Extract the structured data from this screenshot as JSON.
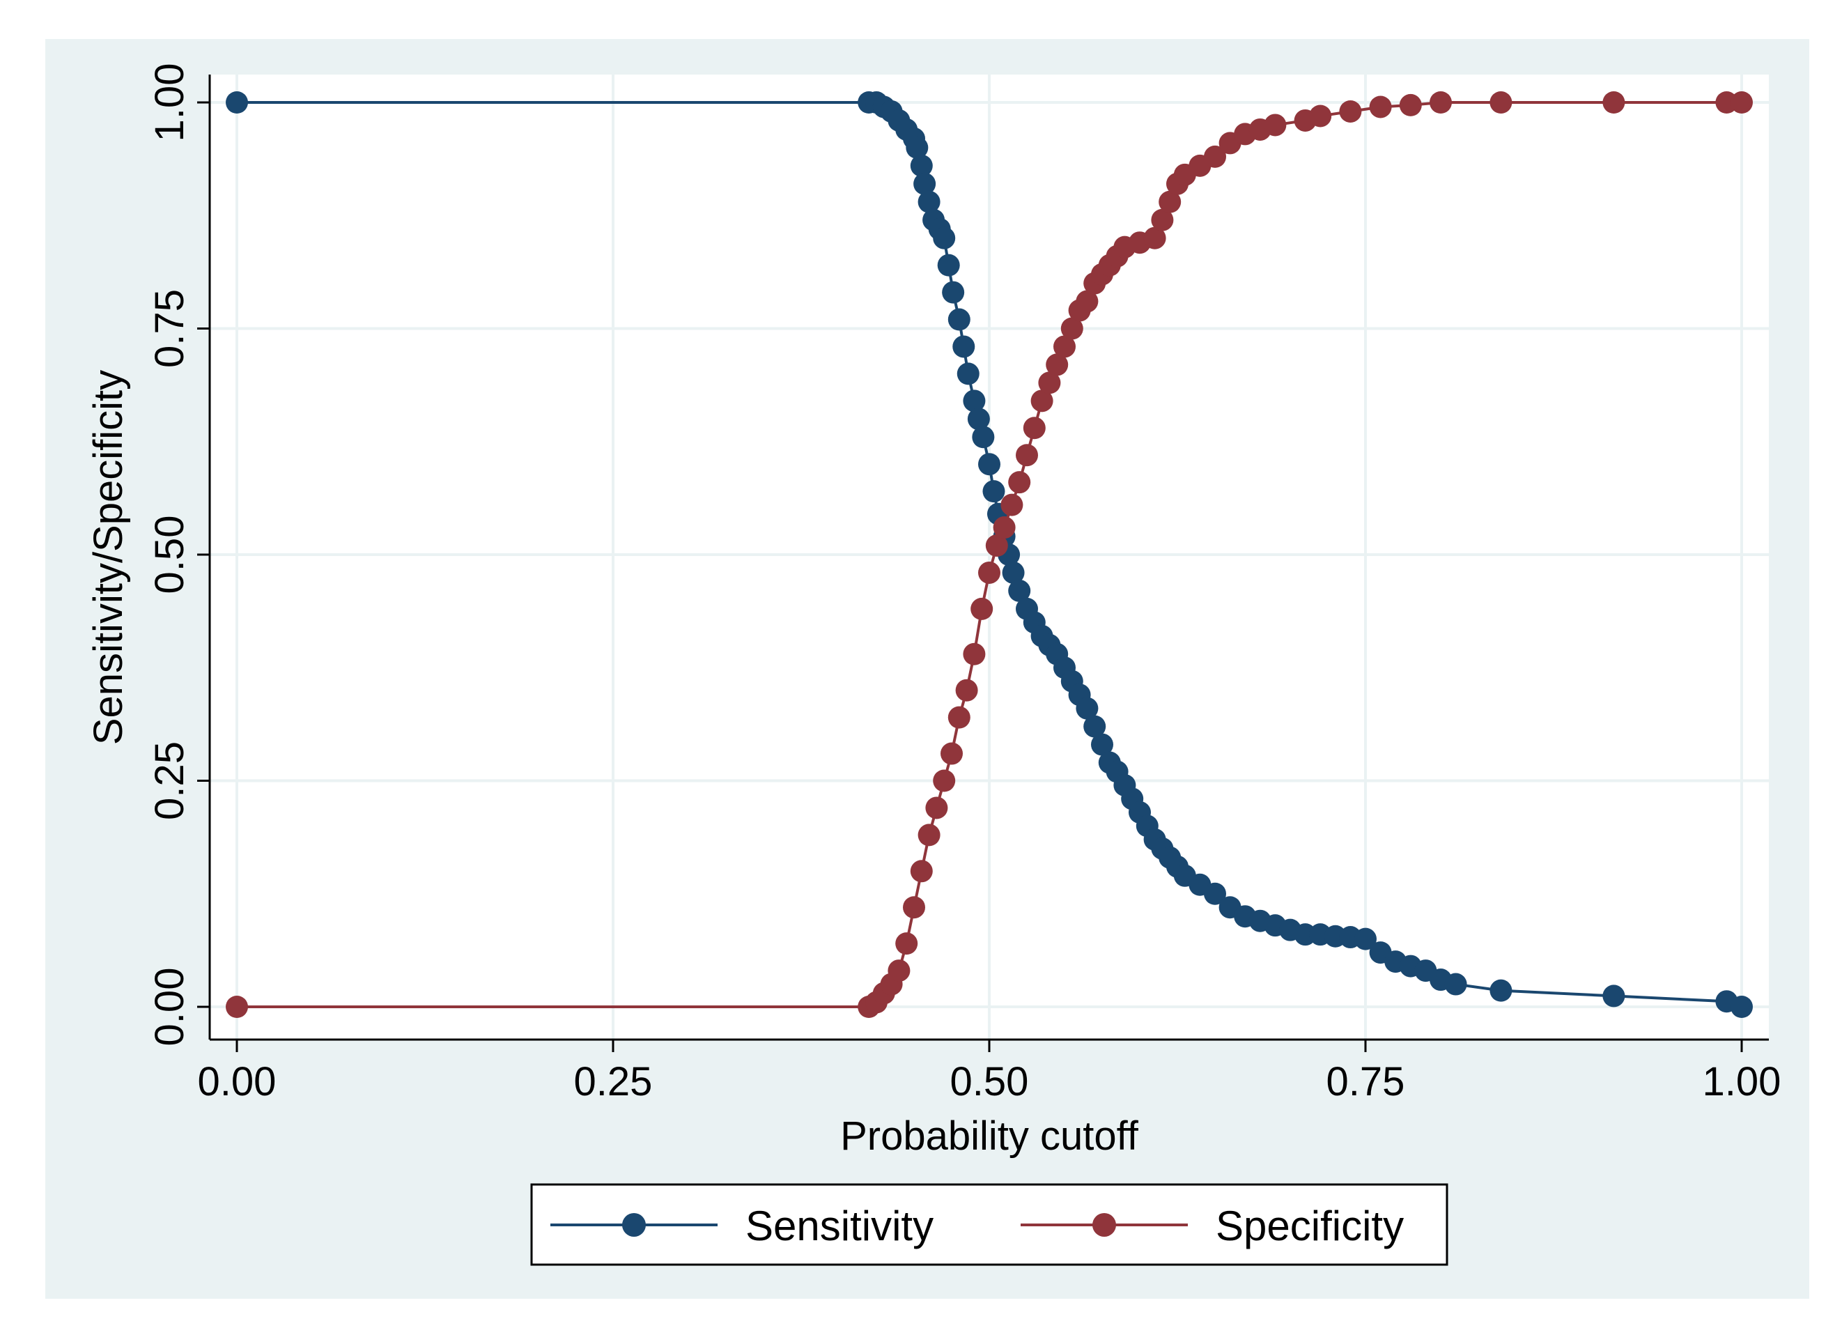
{
  "colors": {
    "figure_background": "#eaf2f3",
    "plot_background": "#ffffff",
    "grid": "#eaf2f3",
    "axis": "#000000",
    "sensitivity": "#1a476f",
    "specificity": "#90353b"
  },
  "chart_data": {
    "type": "line",
    "title": "",
    "xlabel": "Probability cutoff",
    "ylabel": "Sensitivity/Specificity",
    "xlim": [
      0,
      1
    ],
    "ylim": [
      0,
      1
    ],
    "x_ticks": [
      "0.00",
      "0.25",
      "0.50",
      "0.75",
      "1.00"
    ],
    "y_ticks": [
      "0.00",
      "0.25",
      "0.50",
      "0.75",
      "1.00"
    ],
    "grid": true,
    "legend_position": "bottom",
    "series": [
      {
        "name": "Sensitivity",
        "color": "#1a476f",
        "marker": "circle",
        "points": [
          [
            0.0,
            1.0
          ],
          [
            0.42,
            1.0
          ],
          [
            0.425,
            1.0
          ],
          [
            0.43,
            0.995
          ],
          [
            0.435,
            0.99
          ],
          [
            0.44,
            0.98
          ],
          [
            0.445,
            0.97
          ],
          [
            0.45,
            0.96
          ],
          [
            0.452,
            0.95
          ],
          [
            0.455,
            0.93
          ],
          [
            0.457,
            0.91
          ],
          [
            0.46,
            0.89
          ],
          [
            0.463,
            0.87
          ],
          [
            0.467,
            0.86
          ],
          [
            0.47,
            0.85
          ],
          [
            0.473,
            0.82
          ],
          [
            0.476,
            0.79
          ],
          [
            0.48,
            0.76
          ],
          [
            0.483,
            0.73
          ],
          [
            0.486,
            0.7
          ],
          [
            0.49,
            0.67
          ],
          [
            0.493,
            0.65
          ],
          [
            0.496,
            0.63
          ],
          [
            0.5,
            0.6
          ],
          [
            0.503,
            0.57
          ],
          [
            0.506,
            0.545
          ],
          [
            0.51,
            0.52
          ],
          [
            0.513,
            0.5
          ],
          [
            0.516,
            0.48
          ],
          [
            0.52,
            0.46
          ],
          [
            0.525,
            0.44
          ],
          [
            0.53,
            0.425
          ],
          [
            0.535,
            0.41
          ],
          [
            0.54,
            0.4
          ],
          [
            0.545,
            0.39
          ],
          [
            0.55,
            0.375
          ],
          [
            0.555,
            0.36
          ],
          [
            0.56,
            0.345
          ],
          [
            0.565,
            0.33
          ],
          [
            0.57,
            0.31
          ],
          [
            0.575,
            0.29
          ],
          [
            0.58,
            0.27
          ],
          [
            0.585,
            0.26
          ],
          [
            0.59,
            0.245
          ],
          [
            0.595,
            0.23
          ],
          [
            0.6,
            0.215
          ],
          [
            0.605,
            0.2
          ],
          [
            0.61,
            0.185
          ],
          [
            0.615,
            0.175
          ],
          [
            0.62,
            0.165
          ],
          [
            0.625,
            0.155
          ],
          [
            0.63,
            0.145
          ],
          [
            0.64,
            0.135
          ],
          [
            0.65,
            0.125
          ],
          [
            0.66,
            0.11
          ],
          [
            0.67,
            0.1
          ],
          [
            0.68,
            0.095
          ],
          [
            0.69,
            0.09
          ],
          [
            0.7,
            0.085
          ],
          [
            0.71,
            0.08
          ],
          [
            0.72,
            0.08
          ],
          [
            0.73,
            0.078
          ],
          [
            0.74,
            0.077
          ],
          [
            0.75,
            0.075
          ],
          [
            0.76,
            0.06
          ],
          [
            0.77,
            0.05
          ],
          [
            0.78,
            0.045
          ],
          [
            0.79,
            0.04
          ],
          [
            0.8,
            0.03
          ],
          [
            0.81,
            0.025
          ],
          [
            0.84,
            0.018
          ],
          [
            0.915,
            0.012
          ],
          [
            0.99,
            0.006
          ],
          [
            1.0,
            0.0
          ]
        ]
      },
      {
        "name": "Specificity",
        "color": "#90353b",
        "marker": "circle",
        "points": [
          [
            0.0,
            0.0
          ],
          [
            0.42,
            0.0
          ],
          [
            0.425,
            0.005
          ],
          [
            0.43,
            0.015
          ],
          [
            0.435,
            0.025
          ],
          [
            0.44,
            0.04
          ],
          [
            0.445,
            0.07
          ],
          [
            0.45,
            0.11
          ],
          [
            0.455,
            0.15
          ],
          [
            0.46,
            0.19
          ],
          [
            0.465,
            0.22
          ],
          [
            0.47,
            0.25
          ],
          [
            0.475,
            0.28
          ],
          [
            0.48,
            0.32
          ],
          [
            0.485,
            0.35
          ],
          [
            0.49,
            0.39
          ],
          [
            0.495,
            0.44
          ],
          [
            0.5,
            0.48
          ],
          [
            0.505,
            0.51
          ],
          [
            0.51,
            0.53
          ],
          [
            0.515,
            0.555
          ],
          [
            0.52,
            0.58
          ],
          [
            0.525,
            0.61
          ],
          [
            0.53,
            0.64
          ],
          [
            0.535,
            0.67
          ],
          [
            0.54,
            0.69
          ],
          [
            0.545,
            0.71
          ],
          [
            0.55,
            0.73
          ],
          [
            0.555,
            0.75
          ],
          [
            0.56,
            0.77
          ],
          [
            0.565,
            0.78
          ],
          [
            0.57,
            0.8
          ],
          [
            0.575,
            0.81
          ],
          [
            0.58,
            0.82
          ],
          [
            0.585,
            0.83
          ],
          [
            0.59,
            0.84
          ],
          [
            0.6,
            0.845
          ],
          [
            0.61,
            0.85
          ],
          [
            0.615,
            0.87
          ],
          [
            0.62,
            0.89
          ],
          [
            0.625,
            0.91
          ],
          [
            0.63,
            0.92
          ],
          [
            0.64,
            0.93
          ],
          [
            0.65,
            0.94
          ],
          [
            0.66,
            0.955
          ],
          [
            0.67,
            0.965
          ],
          [
            0.68,
            0.97
          ],
          [
            0.69,
            0.975
          ],
          [
            0.71,
            0.98
          ],
          [
            0.72,
            0.985
          ],
          [
            0.74,
            0.99
          ],
          [
            0.76,
            0.995
          ],
          [
            0.78,
            0.997
          ],
          [
            0.8,
            1.0
          ],
          [
            0.84,
            1.0
          ],
          [
            0.915,
            1.0
          ],
          [
            0.99,
            1.0
          ],
          [
            1.0,
            1.0
          ]
        ]
      }
    ]
  }
}
